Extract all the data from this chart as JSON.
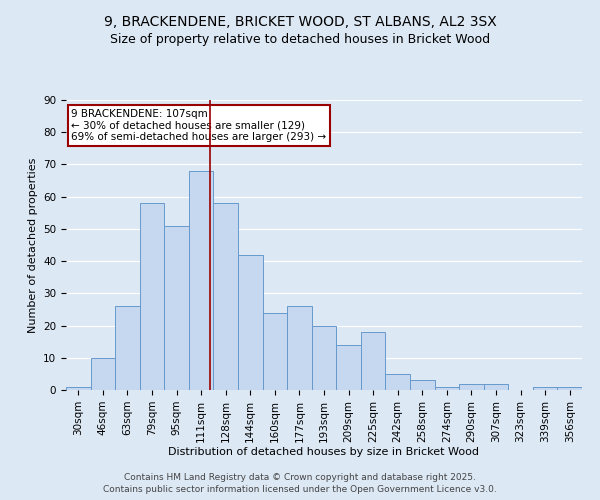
{
  "title1": "9, BRACKENDENE, BRICKET WOOD, ST ALBANS, AL2 3SX",
  "title2": "Size of property relative to detached houses in Bricket Wood",
  "xlabel": "Distribution of detached houses by size in Bricket Wood",
  "ylabel": "Number of detached properties",
  "bar_labels": [
    "30sqm",
    "46sqm",
    "63sqm",
    "79sqm",
    "95sqm",
    "111sqm",
    "128sqm",
    "144sqm",
    "160sqm",
    "177sqm",
    "193sqm",
    "209sqm",
    "225sqm",
    "242sqm",
    "258sqm",
    "274sqm",
    "290sqm",
    "307sqm",
    "323sqm",
    "339sqm",
    "356sqm"
  ],
  "bar_values": [
    1,
    10,
    26,
    58,
    51,
    68,
    58,
    42,
    24,
    26,
    20,
    14,
    18,
    5,
    3,
    1,
    2,
    2,
    0,
    1,
    1
  ],
  "bar_color": "#c5d8f0",
  "bar_edge_color": "#6699cc",
  "annotation_text": "9 BRACKENDENE: 107sqm\n← 30% of detached houses are smaller (129)\n69% of semi-detached houses are larger (293) →",
  "annotation_box_color": "white",
  "annotation_box_edge_color": "#990000",
  "vline_x": 5.35,
  "vline_color": "#990000",
  "ylim": [
    0,
    90
  ],
  "yticks": [
    0,
    10,
    20,
    30,
    40,
    50,
    60,
    70,
    80,
    90
  ],
  "footer1": "Contains HM Land Registry data © Crown copyright and database right 2025.",
  "footer2": "Contains public sector information licensed under the Open Government Licence v3.0.",
  "background_color": "#dde8f5",
  "grid_color": "white",
  "title_fontsize": 10,
  "subtitle_fontsize": 9,
  "axis_label_fontsize": 8,
  "tick_fontsize": 7.5,
  "annotation_fontsize": 7.5,
  "footer_fontsize": 6.5
}
